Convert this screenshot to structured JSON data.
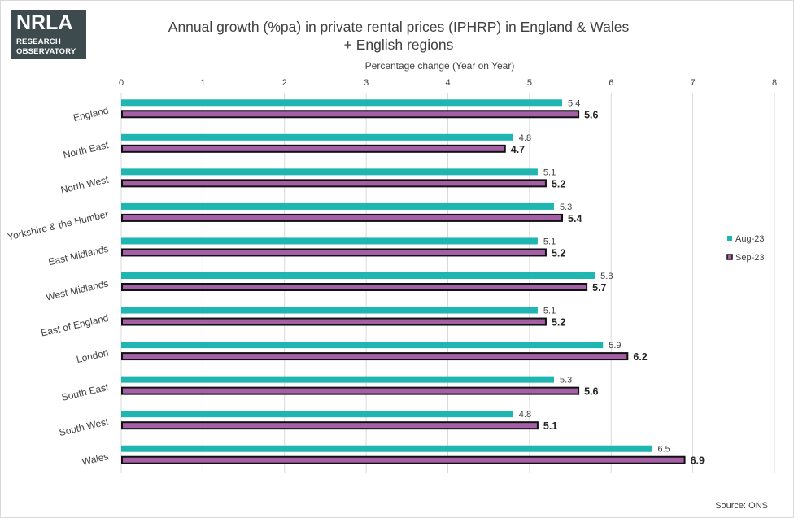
{
  "logo": {
    "brand": "NRLA",
    "line1": "RESEARCH",
    "line2": "OBSERVATORY"
  },
  "source": "Source: ONS",
  "colors": {
    "aug": "#1fb5b0",
    "sep": "#a45fa6",
    "sep_border": "#111111",
    "grid": "#d9d9d9"
  },
  "chart_data": {
    "type": "bar",
    "orientation": "horizontal",
    "title_line1": "Annual growth (%pa) in private rental prices (IPHRP) in England & Wales",
    "title_line2": "+ English regions",
    "xlabel": "Percentage change (Year on Year)",
    "xlim": [
      0,
      8
    ],
    "xticks": [
      "0",
      "1",
      "2",
      "3",
      "4",
      "5",
      "6",
      "7",
      "8"
    ],
    "categories": [
      "England",
      "North East",
      "North West",
      "Yorkshire & the Humber",
      "East Midlands",
      "West Midlands",
      "East of England",
      "London",
      "South East",
      "South West",
      "Wales"
    ],
    "series": [
      {
        "name": "Aug-23",
        "values": [
          5.4,
          4.8,
          5.1,
          5.3,
          5.1,
          5.8,
          5.1,
          5.9,
          5.3,
          4.8,
          6.5
        ]
      },
      {
        "name": "Sep-23",
        "values": [
          5.6,
          4.7,
          5.2,
          5.4,
          5.2,
          5.7,
          5.2,
          6.2,
          5.6,
          5.1,
          6.9
        ]
      }
    ],
    "legend_position": "right"
  }
}
